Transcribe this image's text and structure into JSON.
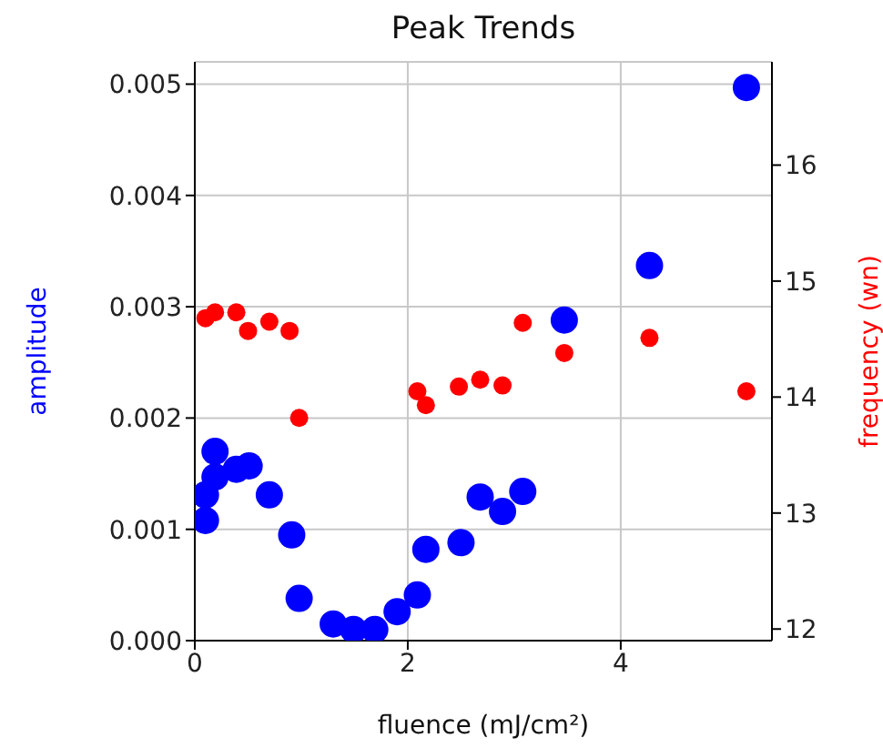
{
  "chart_data": {
    "type": "scatter",
    "title": "Peak Trends",
    "xlabel": "fluence (mJ/cm²)",
    "ylabel": "amplitude",
    "y2label": "frequency (wn)",
    "xlim": [
      0,
      5.42
    ],
    "xticks": [
      0,
      2,
      4
    ],
    "ylim": [
      0,
      0.0052
    ],
    "yticks": [
      {
        "value": 0,
        "label": "0.000"
      },
      {
        "value": 0.001,
        "label": "0.001"
      },
      {
        "value": 0.002,
        "label": "0.002"
      },
      {
        "value": 0.003,
        "label": "0.003"
      },
      {
        "value": 0.004,
        "label": "0.004"
      },
      {
        "value": 0.005,
        "label": "0.005"
      }
    ],
    "y2lim": [
      11.9,
      16.89
    ],
    "y2ticks": [
      12,
      13,
      14,
      15,
      16
    ],
    "grid": true,
    "legend": false,
    "marker": "circle",
    "series": [
      {
        "color": "#0000ff",
        "x": [
          0.1,
          0.1,
          0.19,
          0.19,
          0.39,
          0.51,
          0.7,
          0.91,
          0.98,
          1.3,
          1.49,
          1.69,
          1.9,
          2.09,
          2.17,
          2.5,
          2.68,
          2.89,
          3.08,
          3.47,
          4.27,
          5.18
        ],
        "values": [
          0.00108,
          0.00131,
          0.00147,
          0.0017,
          0.00154,
          0.00157,
          0.00131,
          0.00095,
          0.00038,
          0.00015,
          0.0001,
          0.0001,
          0.00026,
          0.00041,
          0.00082,
          0.00088,
          0.00129,
          0.00116,
          0.00134,
          0.00288,
          0.00337,
          0.00497
        ]
      },
      {
        "color": "#ff0000",
        "axis": "y2",
        "x": [
          0.1,
          0.15,
          0.19,
          0.39,
          0.5,
          0.7,
          0.89,
          0.98,
          2.09,
          2.17,
          2.48,
          2.68,
          2.89,
          3.08,
          3.47,
          4.27,
          5.18
        ],
        "values": [
          14.68,
          null,
          14.73,
          14.73,
          14.57,
          14.65,
          14.57,
          13.82,
          14.05,
          13.93,
          14.09,
          14.15,
          14.1,
          14.64,
          14.38,
          14.51,
          14.05
        ]
      }
    ]
  }
}
